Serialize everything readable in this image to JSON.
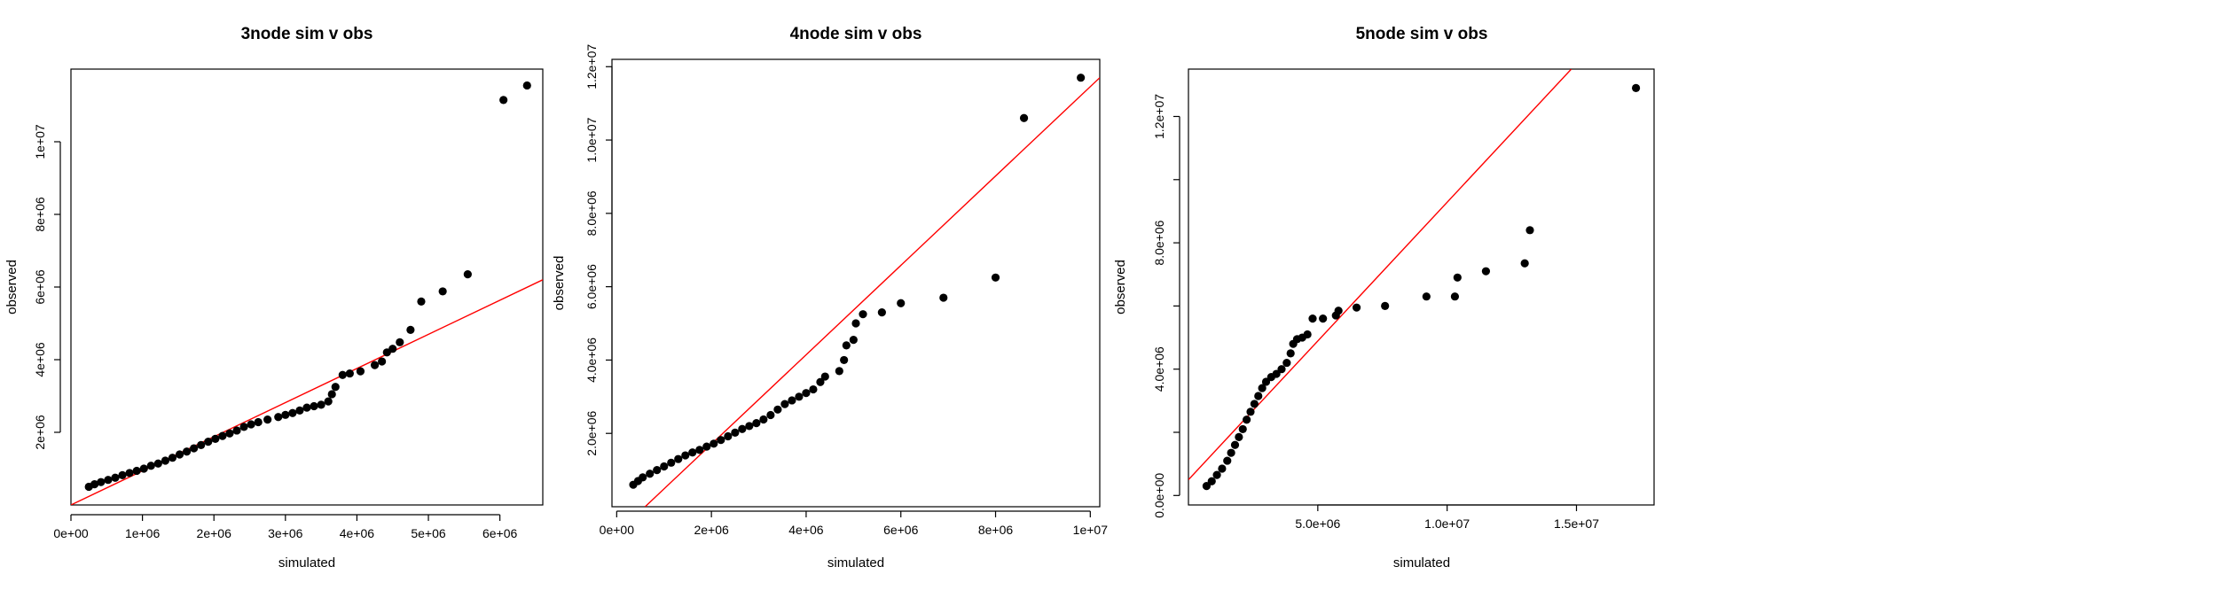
{
  "chart_data": [
    {
      "type": "scatter",
      "title": "3node sim v obs",
      "xlabel": "simulated",
      "ylabel": "observed",
      "xlim": [
        0,
        6600000
      ],
      "ylim": [
        0,
        12000000
      ],
      "x_ticks": [
        {
          "value": 0,
          "label": "0e+00"
        },
        {
          "value": 1000000,
          "label": "1e+06"
        },
        {
          "value": 2000000,
          "label": "2e+06"
        },
        {
          "value": 3000000,
          "label": "3e+06"
        },
        {
          "value": 4000000,
          "label": "4e+06"
        },
        {
          "value": 5000000,
          "label": "5e+06"
        },
        {
          "value": 6000000,
          "label": "6e+06"
        }
      ],
      "y_ticks": [
        {
          "value": 2000000,
          "label": "2e+06"
        },
        {
          "value": 4000000,
          "label": "4e+06"
        },
        {
          "value": 6000000,
          "label": "6e+06"
        },
        {
          "value": 8000000,
          "label": "8e+06"
        },
        {
          "value": 10000000,
          "label": "1e+07"
        }
      ],
      "reference_line": {
        "color": "#ff0000",
        "points": [
          [
            0,
            0
          ],
          [
            6600000,
            6200000
          ]
        ]
      },
      "point_color": "#000000",
      "points": [
        [
          250000,
          500000
        ],
        [
          330000,
          570000
        ],
        [
          420000,
          630000
        ],
        [
          520000,
          690000
        ],
        [
          620000,
          750000
        ],
        [
          720000,
          820000
        ],
        [
          820000,
          880000
        ],
        [
          920000,
          940000
        ],
        [
          1020000,
          1000000
        ],
        [
          1120000,
          1080000
        ],
        [
          1220000,
          1140000
        ],
        [
          1320000,
          1220000
        ],
        [
          1420000,
          1300000
        ],
        [
          1520000,
          1390000
        ],
        [
          1620000,
          1470000
        ],
        [
          1720000,
          1560000
        ],
        [
          1820000,
          1650000
        ],
        [
          1920000,
          1740000
        ],
        [
          2020000,
          1820000
        ],
        [
          2120000,
          1900000
        ],
        [
          2220000,
          1970000
        ],
        [
          2320000,
          2050000
        ],
        [
          2420000,
          2150000
        ],
        [
          2520000,
          2220000
        ],
        [
          2620000,
          2280000
        ],
        [
          2750000,
          2350000
        ],
        [
          2900000,
          2420000
        ],
        [
          3000000,
          2480000
        ],
        [
          3100000,
          2530000
        ],
        [
          3200000,
          2600000
        ],
        [
          3300000,
          2680000
        ],
        [
          3400000,
          2720000
        ],
        [
          3500000,
          2760000
        ],
        [
          3600000,
          2850000
        ],
        [
          3650000,
          3050000
        ],
        [
          3700000,
          3250000
        ],
        [
          3800000,
          3580000
        ],
        [
          3900000,
          3620000
        ],
        [
          4050000,
          3680000
        ],
        [
          4250000,
          3850000
        ],
        [
          4350000,
          3950000
        ],
        [
          4420000,
          4200000
        ],
        [
          4500000,
          4300000
        ],
        [
          4600000,
          4480000
        ],
        [
          4750000,
          4820000
        ],
        [
          4900000,
          5600000
        ],
        [
          5200000,
          5880000
        ],
        [
          5550000,
          6350000
        ],
        [
          6050000,
          11150000
        ],
        [
          6380000,
          11550000
        ]
      ]
    },
    {
      "type": "scatter",
      "title": "4node sim v obs",
      "xlabel": "simulated",
      "ylabel": "observed",
      "xlim": [
        -100000,
        10200000
      ],
      "ylim": [
        0,
        12200000
      ],
      "x_ticks": [
        {
          "value": 0,
          "label": "0e+00"
        },
        {
          "value": 2000000,
          "label": "2e+06"
        },
        {
          "value": 4000000,
          "label": "4e+06"
        },
        {
          "value": 6000000,
          "label": "6e+06"
        },
        {
          "value": 8000000,
          "label": "8e+06"
        },
        {
          "value": 10000000,
          "label": "1e+07"
        }
      ],
      "y_ticks": [
        {
          "value": 2000000,
          "label": "2.0e+06"
        },
        {
          "value": 4000000,
          "label": "4.0e+06"
        },
        {
          "value": 6000000,
          "label": "6.0e+06"
        },
        {
          "value": 8000000,
          "label": "8.0e+06"
        },
        {
          "value": 10000000,
          "label": "1.0e+07"
        },
        {
          "value": 12000000,
          "label": "1.2e+07"
        }
      ],
      "reference_line": {
        "color": "#ff0000",
        "points": [
          [
            600000,
            0
          ],
          [
            10200000,
            11700000
          ]
        ]
      },
      "point_color": "#000000",
      "points": [
        [
          350000,
          600000
        ],
        [
          450000,
          700000
        ],
        [
          550000,
          800000
        ],
        [
          700000,
          900000
        ],
        [
          850000,
          1000000
        ],
        [
          1000000,
          1100000
        ],
        [
          1150000,
          1200000
        ],
        [
          1300000,
          1300000
        ],
        [
          1450000,
          1400000
        ],
        [
          1600000,
          1480000
        ],
        [
          1750000,
          1550000
        ],
        [
          1900000,
          1640000
        ],
        [
          2050000,
          1720000
        ],
        [
          2200000,
          1820000
        ],
        [
          2350000,
          1920000
        ],
        [
          2500000,
          2020000
        ],
        [
          2650000,
          2120000
        ],
        [
          2800000,
          2200000
        ],
        [
          2950000,
          2280000
        ],
        [
          3100000,
          2380000
        ],
        [
          3250000,
          2500000
        ],
        [
          3400000,
          2650000
        ],
        [
          3550000,
          2800000
        ],
        [
          3700000,
          2900000
        ],
        [
          3850000,
          3000000
        ],
        [
          4000000,
          3100000
        ],
        [
          4150000,
          3200000
        ],
        [
          4300000,
          3400000
        ],
        [
          4400000,
          3550000
        ],
        [
          4700000,
          3700000
        ],
        [
          4800000,
          4000000
        ],
        [
          4850000,
          4400000
        ],
        [
          5000000,
          4550000
        ],
        [
          5050000,
          5000000
        ],
        [
          5200000,
          5250000
        ],
        [
          5600000,
          5300000
        ],
        [
          6000000,
          5550000
        ],
        [
          6900000,
          5700000
        ],
        [
          8000000,
          6250000
        ],
        [
          8600000,
          10600000
        ],
        [
          9800000,
          11700000
        ]
      ]
    },
    {
      "type": "scatter",
      "title": "5node sim v obs",
      "xlabel": "simulated",
      "ylabel": "observed",
      "xlim": [
        0,
        18000000
      ],
      "ylim": [
        -300000,
        13500000
      ],
      "x_ticks": [
        {
          "value": 5000000,
          "label": "5.0e+06"
        },
        {
          "value": 10000000,
          "label": "1.0e+07"
        },
        {
          "value": 15000000,
          "label": "1.5e+07"
        }
      ],
      "y_ticks": [
        {
          "value": 0,
          "label": "0.0e+00"
        },
        {
          "value": 2000000,
          "label": ""
        },
        {
          "value": 4000000,
          "label": "4.0e+06"
        },
        {
          "value": 6000000,
          "label": ""
        },
        {
          "value": 8000000,
          "label": "8.0e+06"
        },
        {
          "value": 10000000,
          "label": ""
        },
        {
          "value": 12000000,
          "label": "1.2e+07"
        }
      ],
      "reference_line": {
        "color": "#ff0000",
        "points": [
          [
            0,
            500000
          ],
          [
            14800000,
            13500000
          ]
        ]
      },
      "point_color": "#000000",
      "points": [
        [
          700000,
          300000
        ],
        [
          900000,
          450000
        ],
        [
          1100000,
          650000
        ],
        [
          1300000,
          850000
        ],
        [
          1500000,
          1100000
        ],
        [
          1650000,
          1350000
        ],
        [
          1800000,
          1600000
        ],
        [
          1950000,
          1850000
        ],
        [
          2100000,
          2100000
        ],
        [
          2250000,
          2400000
        ],
        [
          2400000,
          2650000
        ],
        [
          2550000,
          2900000
        ],
        [
          2700000,
          3150000
        ],
        [
          2850000,
          3400000
        ],
        [
          3000000,
          3600000
        ],
        [
          3200000,
          3750000
        ],
        [
          3400000,
          3850000
        ],
        [
          3600000,
          4000000
        ],
        [
          3800000,
          4200000
        ],
        [
          3950000,
          4500000
        ],
        [
          4050000,
          4800000
        ],
        [
          4200000,
          4950000
        ],
        [
          4400000,
          5000000
        ],
        [
          4600000,
          5100000
        ],
        [
          4800000,
          5600000
        ],
        [
          5200000,
          5600000
        ],
        [
          5700000,
          5700000
        ],
        [
          5800000,
          5850000
        ],
        [
          6500000,
          5950000
        ],
        [
          7600000,
          6000000
        ],
        [
          9200000,
          6300000
        ],
        [
          10300000,
          6300000
        ],
        [
          10400000,
          6900000
        ],
        [
          11500000,
          7100000
        ],
        [
          13000000,
          7350000
        ],
        [
          13200000,
          8400000
        ],
        [
          17300000,
          12900000
        ]
      ]
    }
  ]
}
